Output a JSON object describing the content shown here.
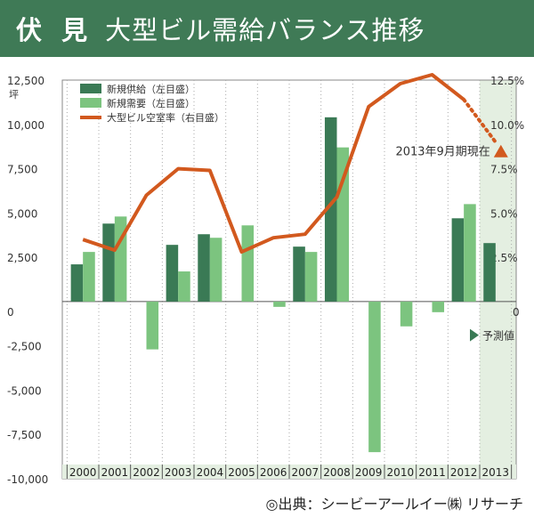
{
  "header": {
    "region": "伏 見",
    "title": "大型ビル需給バランス推移"
  },
  "source": "◎出典：シービーアールイー㈱ リサーチ",
  "colors": {
    "supply": "#3a7a55",
    "demand": "#7cc47f",
    "vacancy": "#d2591e",
    "forecast_bg": "#e4efe1",
    "header_bg": "#3f7a56"
  },
  "chart_data": {
    "type": "bar",
    "categories": [
      "2000",
      "2001",
      "2002",
      "2003",
      "2004",
      "2005",
      "2006",
      "2007",
      "2008",
      "2009",
      "2010",
      "2011",
      "2012",
      "2013"
    ],
    "series": [
      {
        "name": "新規供給（左目盛）",
        "values": [
          2100,
          4400,
          0,
          3200,
          3800,
          0,
          0,
          3100,
          10400,
          0,
          0,
          0,
          4700,
          3300
        ]
      },
      {
        "name": "新規需要（左目盛）",
        "values": [
          2800,
          4800,
          -2700,
          1700,
          3600,
          4300,
          -300,
          2800,
          8700,
          -8500,
          -1400,
          -600,
          5500,
          0
        ]
      },
      {
        "name": "大型ビル空室率（右目盛）",
        "axis": "right",
        "type": "line",
        "values": [
          3.5,
          2.9,
          6.0,
          7.5,
          7.4,
          2.8,
          3.6,
          3.8,
          5.9,
          11.0,
          12.3,
          12.8,
          11.4,
          9.0
        ]
      }
    ],
    "left_axis": {
      "unit": "坪",
      "ylim": [
        -10000,
        12500
      ],
      "ticks": [
        "12,500",
        "10,000",
        "7,500",
        "5,000",
        "2,500",
        "0",
        "-2,500",
        "-5,000",
        "-7,500",
        "-10,000"
      ]
    },
    "right_axis": {
      "ylim": [
        0,
        12.5
      ],
      "ticks": [
        "12.5%",
        "10.0%",
        "7.5%",
        "5.0%",
        "2.5%",
        "0"
      ]
    },
    "forecast_category": "2013",
    "forecast_label": "予測値",
    "annotation": "2013年9月期現在",
    "legend_position": "top-left",
    "grid": true
  }
}
